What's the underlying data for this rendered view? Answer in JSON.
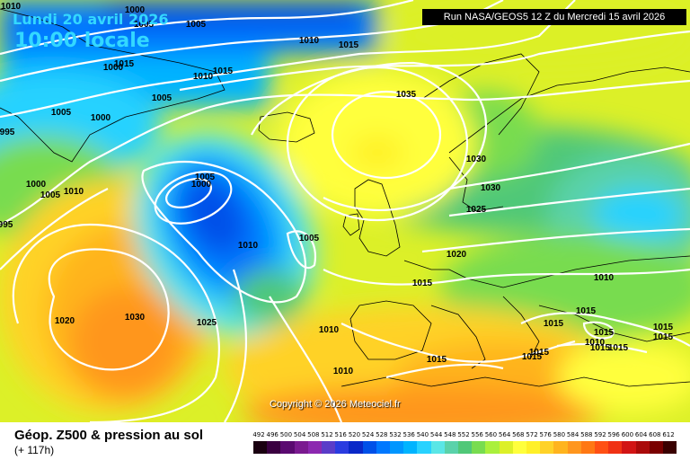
{
  "header": {
    "date": "Lundi 20 avril 2026",
    "local_time": "10:00 locale",
    "run_info": "Run NASA/GEOS5 12 Z du Mercredi 15 avril 2026"
  },
  "copyright": "Copyright © 2026 Meteociel.fr",
  "footer": {
    "title": "Géop. Z500 & pression au sol",
    "subtitle": "(+ 117h)"
  },
  "legend": {
    "values": [
      "492",
      "496",
      "500",
      "504",
      "508",
      "512",
      "516",
      "520",
      "524",
      "528",
      "532",
      "536",
      "540",
      "544",
      "548",
      "552",
      "556",
      "560",
      "564",
      "568",
      "572",
      "576",
      "580",
      "584",
      "588",
      "592",
      "596",
      "600",
      "604",
      "608",
      "612"
    ],
    "colors": [
      "#1a0010",
      "#3a0040",
      "#5a0a70",
      "#7a1a90",
      "#8c28b0",
      "#5a3cc8",
      "#2a3ce0",
      "#0a28c8",
      "#0050e8",
      "#0078ff",
      "#0096ff",
      "#00b4ff",
      "#28d2ff",
      "#5ae6e6",
      "#5ad2aa",
      "#50c878",
      "#78dc50",
      "#aaf03c",
      "#dcf028",
      "#ffff3c",
      "#fff028",
      "#ffd228",
      "#ffb41e",
      "#ff961e",
      "#ff7814",
      "#ff5014",
      "#f03214",
      "#d21414",
      "#aa0a0a",
      "#7a0000",
      "#3a0000"
    ]
  },
  "pressure_labels": [
    "1010",
    "1000",
    "1005",
    "1000",
    "1005",
    "1015",
    "1010",
    "1015",
    "1005",
    "1000",
    "1005",
    "1015",
    "1010",
    "995",
    "1000",
    "1005",
    "1010",
    "995",
    "1035",
    "1030",
    "1030",
    "1025",
    "1020",
    "1015",
    "1010",
    "1005",
    "1005",
    "1000",
    "1010",
    "1020",
    "1030",
    "1025",
    "1015",
    "1010",
    "1010",
    "1015",
    "1015",
    "1015",
    "1015",
    "1015",
    "1015",
    "1010",
    "1015",
    "1015",
    "1015"
  ]
}
